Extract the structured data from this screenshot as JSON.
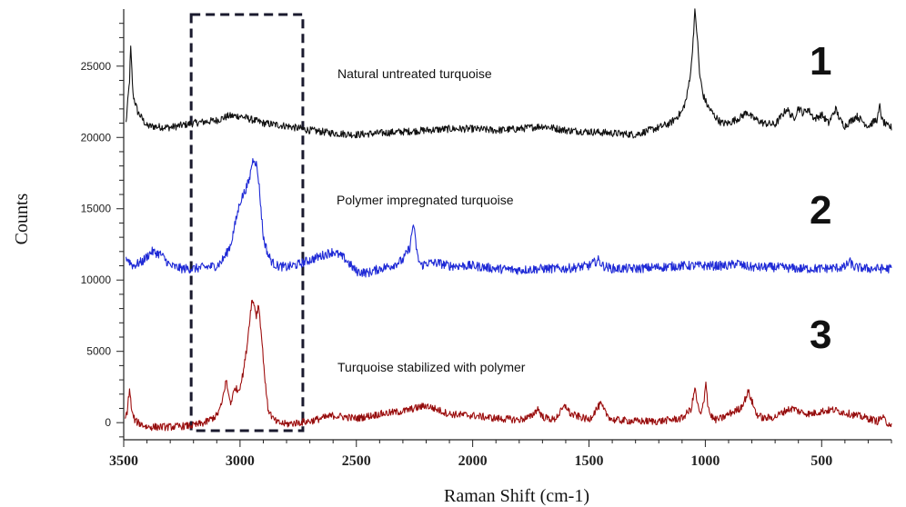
{
  "chart_data": {
    "type": "line",
    "title": "",
    "xlabel": "Raman Shift (cm-1)",
    "ylabel": "Counts",
    "xlim": [
      3500,
      200
    ],
    "ylim": [
      -1200,
      29000
    ],
    "x_ticks": [
      3500,
      3000,
      2500,
      2000,
      1500,
      1000,
      500
    ],
    "y_ticks": [
      0,
      5000,
      10000,
      15000,
      20000,
      25000
    ],
    "grid": false,
    "legend": "none",
    "highlight_region": {
      "x_from": 3210,
      "x_to": 2730,
      "style": "dashed"
    },
    "series": [
      {
        "label": "Natural untreated turquoise",
        "number": "1",
        "color": "#111111",
        "x": [
          3490,
          3475,
          3470,
          3460,
          3440,
          3400,
          3300,
          3200,
          3100,
          3050,
          3000,
          2900,
          2800,
          2700,
          2600,
          2500,
          2400,
          2300,
          2200,
          2100,
          2000,
          1900,
          1800,
          1700,
          1600,
          1500,
          1400,
          1300,
          1200,
          1150,
          1100,
          1080,
          1060,
          1045,
          1035,
          1025,
          1010,
          990,
          960,
          930,
          900,
          850,
          820,
          800,
          750,
          700,
          650,
          620,
          600,
          580,
          560,
          530,
          500,
          470,
          440,
          420,
          400,
          350,
          300,
          260,
          250,
          240,
          220,
          200
        ],
        "y": [
          21000,
          24000,
          26300,
          23000,
          21800,
          20800,
          20700,
          21000,
          21200,
          21500,
          21500,
          21000,
          20800,
          20500,
          20300,
          20200,
          20300,
          20400,
          20500,
          20600,
          20600,
          20500,
          20600,
          20800,
          20500,
          20400,
          20300,
          20200,
          20700,
          21000,
          21800,
          22800,
          25000,
          28800,
          27200,
          24500,
          23000,
          22200,
          21500,
          21000,
          21000,
          21400,
          21800,
          21400,
          21000,
          20900,
          22000,
          21300,
          22100,
          21700,
          22000,
          21300,
          21600,
          21000,
          22000,
          21200,
          20800,
          21500,
          20800,
          21300,
          22200,
          21200,
          20800,
          20700
        ]
      },
      {
        "label": "Polymer impregnated turquoise",
        "number": "2",
        "color": "#1f2ad6",
        "x": [
          3490,
          3460,
          3420,
          3380,
          3340,
          3300,
          3250,
          3200,
          3150,
          3100,
          3080,
          3060,
          3040,
          3020,
          3000,
          2980,
          2960,
          2950,
          2940,
          2930,
          2920,
          2910,
          2900,
          2880,
          2860,
          2840,
          2800,
          2750,
          2700,
          2650,
          2600,
          2550,
          2500,
          2450,
          2400,
          2350,
          2300,
          2270,
          2255,
          2245,
          2235,
          2220,
          2200,
          2150,
          2100,
          2000,
          1900,
          1800,
          1700,
          1600,
          1500,
          1460,
          1440,
          1400,
          1300,
          1200,
          1100,
          1000,
          900,
          860,
          840,
          800,
          700,
          600,
          500,
          400,
          380,
          360,
          300,
          200
        ],
        "y": [
          11600,
          11000,
          11300,
          12000,
          11800,
          11000,
          10800,
          10800,
          10900,
          11000,
          11300,
          11800,
          12500,
          14000,
          15500,
          16200,
          17000,
          18100,
          18600,
          18100,
          17000,
          15000,
          13000,
          11800,
          11200,
          11000,
          10900,
          11100,
          11400,
          11700,
          12000,
          11500,
          10600,
          10500,
          10800,
          11000,
          11400,
          12300,
          14000,
          12600,
          11500,
          11000,
          11200,
          11200,
          11000,
          11000,
          10800,
          10700,
          10800,
          10800,
          11000,
          11400,
          11000,
          10800,
          10800,
          10900,
          11000,
          11000,
          11000,
          11200,
          11000,
          10900,
          10900,
          10800,
          10800,
          10900,
          11300,
          10900,
          10800,
          10800
        ]
      },
      {
        "label": "Turquoise stabilized with polymer",
        "number": "3",
        "color": "#c41414",
        "x": [
          3495,
          3485,
          3475,
          3465,
          3450,
          3400,
          3300,
          3200,
          3150,
          3100,
          3080,
          3060,
          3050,
          3040,
          3020,
          3010,
          3000,
          2990,
          2980,
          2970,
          2960,
          2950,
          2940,
          2930,
          2920,
          2910,
          2900,
          2890,
          2880,
          2860,
          2840,
          2800,
          2750,
          2700,
          2600,
          2500,
          2400,
          2300,
          2250,
          2200,
          2150,
          2100,
          2000,
          1900,
          1800,
          1750,
          1720,
          1700,
          1650,
          1610,
          1600,
          1580,
          1500,
          1470,
          1450,
          1430,
          1400,
          1300,
          1200,
          1100,
          1060,
          1045,
          1030,
          1020,
          1005,
          998,
          990,
          980,
          960,
          930,
          900,
          850,
          830,
          815,
          800,
          780,
          750,
          700,
          650,
          620,
          600,
          550,
          500,
          450,
          400,
          350,
          300,
          260,
          240,
          220,
          200
        ],
        "y": [
          200,
          800,
          2400,
          700,
          100,
          -300,
          -300,
          -200,
          0,
          500,
          1200,
          3000,
          2000,
          1400,
          2500,
          2200,
          2600,
          3200,
          4200,
          5400,
          7000,
          8500,
          8400,
          7500,
          8300,
          6500,
          4500,
          2500,
          1000,
          300,
          0,
          -100,
          0,
          100,
          500,
          300,
          600,
          800,
          1000,
          1200,
          900,
          600,
          500,
          300,
          200,
          400,
          1000,
          400,
          200,
          1000,
          1200,
          600,
          200,
          900,
          1300,
          700,
          200,
          100,
          100,
          300,
          1000,
          2400,
          1000,
          500,
          1500,
          3100,
          1400,
          600,
          200,
          300,
          600,
          1000,
          1600,
          2200,
          1500,
          600,
          300,
          400,
          900,
          1000,
          800,
          600,
          800,
          900,
          700,
          500,
          300,
          100,
          400,
          0,
          -100
        ]
      }
    ]
  }
}
